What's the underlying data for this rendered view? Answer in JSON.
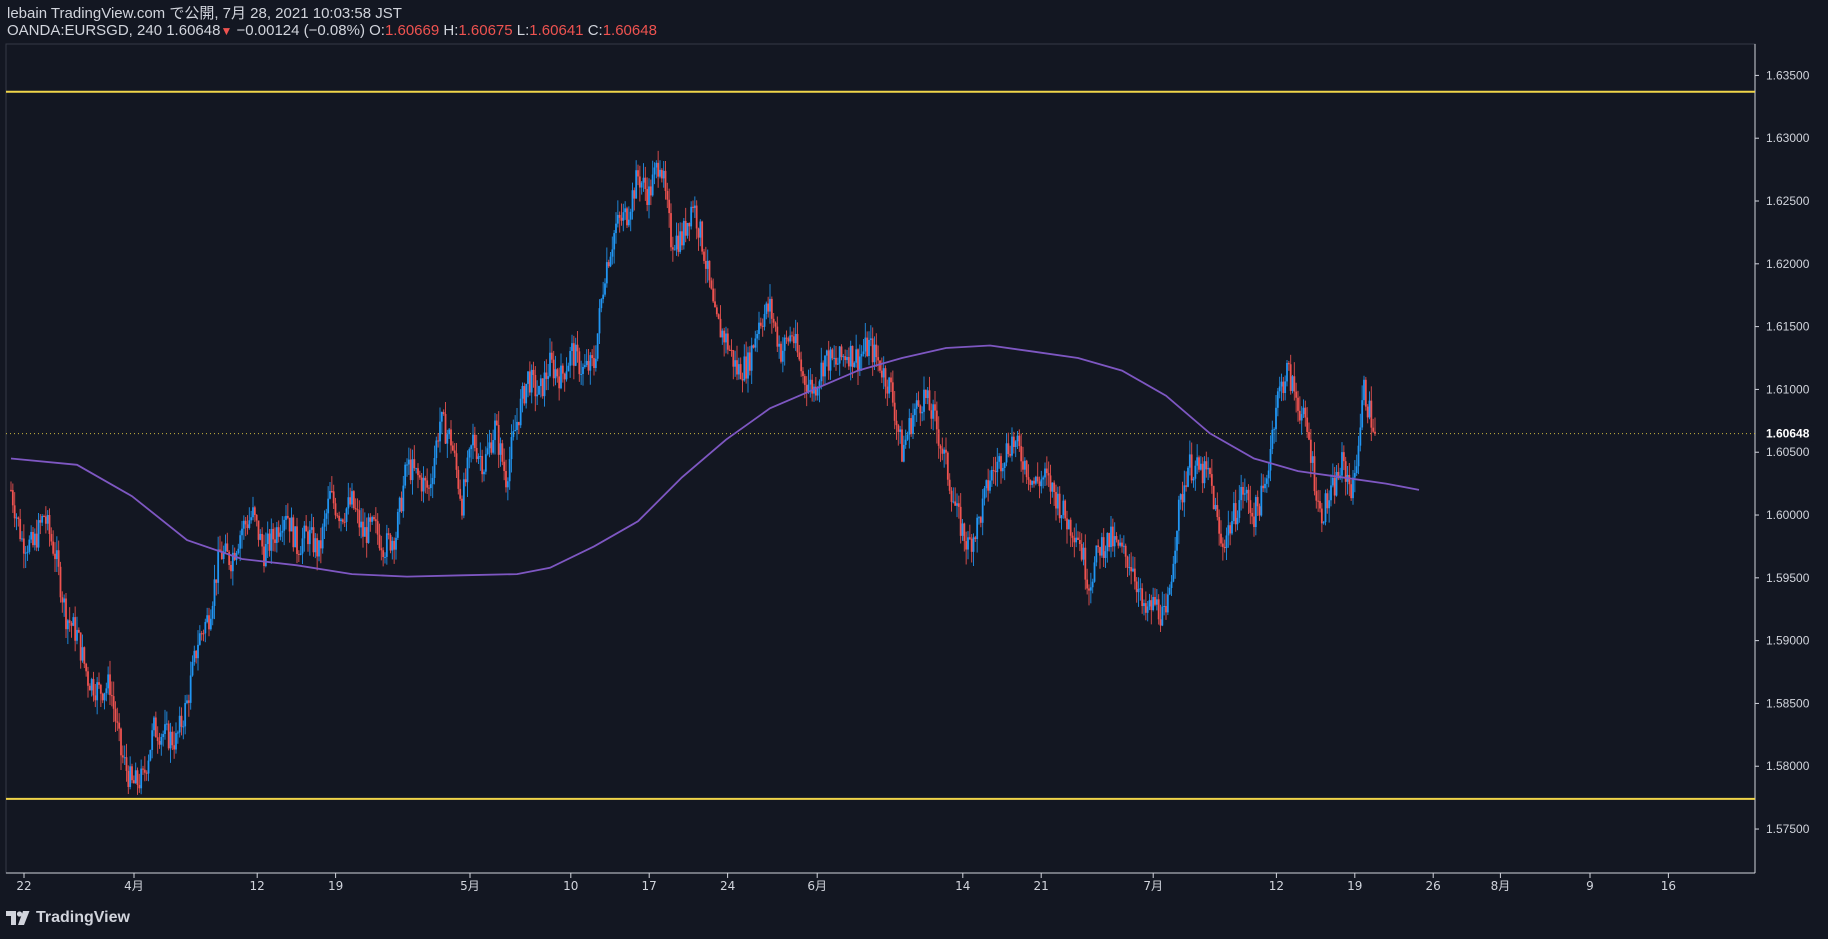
{
  "header": {
    "line1": "lebain TradingView.com で公開, 7月 28, 2021 10:03:58 JST",
    "symbol": "OANDA:EURSGD, 240",
    "last": "1.60648",
    "change": "−0.00124 (−0.08%)",
    "o_label": "O:",
    "o": "1.60669",
    "h_label": "H:",
    "h": "1.60675",
    "l_label": "L:",
    "l": "1.60641",
    "c_label": "C:",
    "c": "1.60648"
  },
  "footer": {
    "brand": "TradingView",
    "logo_icon": "tradingview-logo-icon"
  },
  "colors": {
    "background": "#131722",
    "up": "#2196f3",
    "down": "#ef5350",
    "ma": "#7e57c2",
    "hline": "#f0d54a",
    "price_line": "#c8b640",
    "grid_text": "#d1d4dc"
  },
  "chart_data": {
    "type": "candlestick",
    "ylim": [
      1.5715,
      1.6375
    ],
    "y_ticks": [
      "1.63500",
      "1.63000",
      "1.62500",
      "1.62000",
      "1.61500",
      "1.61000",
      "1.60500",
      "1.60000",
      "1.59500",
      "1.59000",
      "1.58500",
      "1.58000",
      "1.57500"
    ],
    "x_ticks": [
      {
        "label": "22",
        "day": 0
      },
      {
        "label": "4月",
        "day": 10
      },
      {
        "label": "12",
        "day": 21
      },
      {
        "label": "19",
        "day": 28
      },
      {
        "label": "5月",
        "day": 40
      },
      {
        "label": "10",
        "day": 49
      },
      {
        "label": "17",
        "day": 56
      },
      {
        "label": "24",
        "day": 63
      },
      {
        "label": "6月",
        "day": 71
      },
      {
        "label": "14",
        "day": 84
      },
      {
        "label": "21",
        "day": 91
      },
      {
        "label": "7月",
        "day": 101
      },
      {
        "label": "12",
        "day": 112
      },
      {
        "label": "19",
        "day": 119
      },
      {
        "label": "26",
        "day": 126
      },
      {
        "label": "8月",
        "day": 132
      },
      {
        "label": "9",
        "day": 140
      },
      {
        "label": "16",
        "day": 147
      }
    ],
    "current_price": "1.60648",
    "current_value": 1.60648,
    "horizontal_lines": [
      1.6337,
      1.5774
    ],
    "closes": [
      [
        -1,
        1.602
      ],
      [
        0,
        1.598
      ],
      [
        1,
        1.5975
      ],
      [
        2,
        1.6
      ],
      [
        3,
        1.597
      ],
      [
        4,
        1.592
      ],
      [
        5,
        1.5905
      ],
      [
        6,
        1.587
      ],
      [
        7,
        1.586
      ],
      [
        8,
        1.5865
      ],
      [
        9,
        1.581
      ],
      [
        10,
        1.5785
      ],
      [
        11,
        1.579
      ],
      [
        12,
        1.583
      ],
      [
        13,
        1.5825
      ],
      [
        14,
        1.582
      ],
      [
        15,
        1.585
      ],
      [
        16,
        1.59
      ],
      [
        17,
        1.592
      ],
      [
        18,
        1.597
      ],
      [
        19,
        1.5965
      ],
      [
        20,
        1.599
      ],
      [
        21,
        1.6
      ],
      [
        22,
        1.597
      ],
      [
        23,
        1.5985
      ],
      [
        24,
        1.6005
      ],
      [
        25,
        1.5975
      ],
      [
        26,
        1.5985
      ],
      [
        27,
        1.597
      ],
      [
        28,
        1.6015
      ],
      [
        29,
        1.6
      ],
      [
        30,
        1.601
      ],
      [
        31,
        1.5985
      ],
      [
        32,
        1.599
      ],
      [
        33,
        1.5975
      ],
      [
        34,
        1.5985
      ],
      [
        35,
        1.604
      ],
      [
        36,
        1.603
      ],
      [
        37,
        1.602
      ],
      [
        38,
        1.6075
      ],
      [
        39,
        1.606
      ],
      [
        40,
        1.601
      ],
      [
        41,
        1.606
      ],
      [
        42,
        1.604
      ],
      [
        43,
        1.607
      ],
      [
        44,
        1.603
      ],
      [
        45,
        1.6075
      ],
      [
        46,
        1.611
      ],
      [
        47,
        1.6095
      ],
      [
        48,
        1.612
      ],
      [
        49,
        1.611
      ],
      [
        50,
        1.613
      ],
      [
        51,
        1.6115
      ],
      [
        52,
        1.612
      ],
      [
        53,
        1.6195
      ],
      [
        54,
        1.623
      ],
      [
        55,
        1.624
      ],
      [
        56,
        1.627
      ],
      [
        57,
        1.6255
      ],
      [
        58,
        1.6285
      ],
      [
        59,
        1.622
      ],
      [
        60,
        1.622
      ],
      [
        61,
        1.625
      ],
      [
        62,
        1.621
      ],
      [
        63,
        1.6155
      ],
      [
        64,
        1.614
      ],
      [
        65,
        1.6115
      ],
      [
        66,
        1.612
      ],
      [
        67,
        1.6155
      ],
      [
        68,
        1.6165
      ],
      [
        69,
        1.613
      ],
      [
        70,
        1.6145
      ],
      [
        71,
        1.611
      ],
      [
        72,
        1.61
      ],
      [
        73,
        1.6125
      ],
      [
        74,
        1.612
      ],
      [
        75,
        1.613
      ],
      [
        76,
        1.6125
      ],
      [
        77,
        1.6135
      ],
      [
        78,
        1.612
      ],
      [
        79,
        1.61
      ],
      [
        80,
        1.605
      ],
      [
        81,
        1.608
      ],
      [
        82,
        1.6095
      ],
      [
        83,
        1.6075
      ],
      [
        84,
        1.604
      ],
      [
        85,
        1.6
      ],
      [
        86,
        1.5975
      ],
      [
        87,
        1.5995
      ],
      [
        88,
        1.603
      ],
      [
        89,
        1.6045
      ],
      [
        90,
        1.606
      ],
      [
        91,
        1.6045
      ],
      [
        92,
        1.6025
      ],
      [
        93,
        1.603
      ],
      [
        94,
        1.6015
      ],
      [
        95,
        1.5995
      ],
      [
        96,
        1.5985
      ],
      [
        97,
        1.5945
      ],
      [
        98,
        1.5975
      ],
      [
        99,
        1.598
      ],
      [
        100,
        1.597
      ],
      [
        101,
        1.596
      ],
      [
        102,
        1.592
      ],
      [
        103,
        1.593
      ],
      [
        104,
        1.5915
      ],
      [
        105,
        1.5995
      ],
      [
        106,
        1.604
      ],
      [
        107,
        1.6035
      ],
      [
        108,
        1.603
      ],
      [
        109,
        1.5975
      ],
      [
        110,
        1.5995
      ],
      [
        111,
        1.602
      ],
      [
        112,
        1.6
      ],
      [
        113,
        1.602
      ],
      [
        114,
        1.609
      ],
      [
        115,
        1.6115
      ],
      [
        116,
        1.609
      ],
      [
        117,
        1.606
      ],
      [
        118,
        1.6
      ],
      [
        119,
        1.6015
      ],
      [
        120,
        1.604
      ],
      [
        121,
        1.602
      ],
      [
        122,
        1.61
      ],
      [
        123,
        1.60648
      ]
    ],
    "ma_series": "MA",
    "ma": [
      [
        -1,
        1.6045
      ],
      [
        5,
        1.604
      ],
      [
        10,
        1.6015
      ],
      [
        15,
        1.598
      ],
      [
        20,
        1.5965
      ],
      [
        25,
        1.596
      ],
      [
        30,
        1.5953
      ],
      [
        35,
        1.5951
      ],
      [
        40,
        1.5952
      ],
      [
        45,
        1.5953
      ],
      [
        48,
        1.5958
      ],
      [
        52,
        1.5975
      ],
      [
        56,
        1.5995
      ],
      [
        60,
        1.603
      ],
      [
        64,
        1.606
      ],
      [
        68,
        1.6085
      ],
      [
        72,
        1.61
      ],
      [
        76,
        1.6115
      ],
      [
        80,
        1.6125
      ],
      [
        84,
        1.6133
      ],
      [
        88,
        1.6135
      ],
      [
        92,
        1.613
      ],
      [
        96,
        1.6125
      ],
      [
        100,
        1.6115
      ],
      [
        104,
        1.6095
      ],
      [
        108,
        1.6065
      ],
      [
        112,
        1.6045
      ],
      [
        116,
        1.6035
      ],
      [
        120,
        1.603
      ],
      [
        124,
        1.6025
      ],
      [
        127,
        1.602
      ]
    ]
  }
}
